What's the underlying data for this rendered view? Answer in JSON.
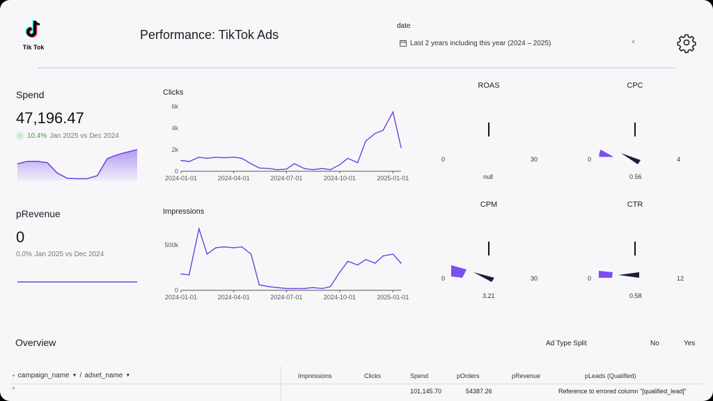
{
  "header": {
    "logo_text": "Tik Tok",
    "title": "Performance: TikTok Ads",
    "date_label": "date",
    "date_value": "Last 2 years including this year (2024 – 2025)",
    "clear_symbol": "×"
  },
  "kpis": {
    "spend": {
      "title": "Spend",
      "value": "47,196.47",
      "delta": "10.4%",
      "period": "Jan 2025 vs Dec 2024"
    },
    "prevenue": {
      "title": "pRevenue",
      "value": "0",
      "delta": "0.0%",
      "period": "Jan 2025 vs Dec 2024"
    }
  },
  "gauges": {
    "roas": {
      "title": "ROAS",
      "min": "0",
      "max": "30",
      "value": "null"
    },
    "cpc": {
      "title": "CPC",
      "min": "0",
      "max": "4",
      "value": "0.56"
    },
    "cpm": {
      "title": "CPM",
      "min": "0",
      "max": "30",
      "value": "3.21"
    },
    "ctr": {
      "title": "CTR",
      "min": "0",
      "max": "12",
      "value": "0.58"
    }
  },
  "overview": {
    "title": "Overview",
    "split_label": "Ad Type Split",
    "split_no": "No",
    "split_yes": "Yes"
  },
  "table": {
    "row_dim1": "campaign_name",
    "row_dim_sep": "/",
    "row_dim2": "adset_name",
    "expand_symbol": "+",
    "columns": [
      "Impressions",
      "Clicks",
      "Spend",
      "pOrders",
      "pRevenue",
      "pLeads (Qualified)"
    ],
    "total_row": {
      "spend": "101,145.70",
      "porders": "54387.26",
      "pleads": "Reference to errored column \"[qualified_lead]\""
    }
  },
  "colors": {
    "accent": "#6c3fe0",
    "needle": "#1d1d3a",
    "gauge_fill": "#7b4ef0"
  },
  "chart_data": [
    {
      "type": "area",
      "title": "Spend",
      "x": [
        "2024-01",
        "2024-02",
        "2024-03",
        "2024-04",
        "2024-05",
        "2024-06",
        "2024-07",
        "2024-08",
        "2024-09",
        "2024-10",
        "2024-11",
        "2024-12",
        "2025-01"
      ],
      "values": [
        2400,
        2800,
        2800,
        2600,
        1000,
        200,
        150,
        150,
        600,
        3200,
        3800,
        4200,
        4600
      ],
      "ylim": [
        0,
        5000
      ]
    },
    {
      "type": "line",
      "title": "pRevenue",
      "x": [
        "2024-01",
        "2024-02",
        "2024-03",
        "2024-04",
        "2024-05",
        "2024-06",
        "2024-07",
        "2024-08",
        "2024-09",
        "2024-10",
        "2024-11",
        "2024-12",
        "2025-01"
      ],
      "values": [
        0,
        0,
        0,
        0,
        0,
        0,
        0,
        0,
        0,
        0,
        0,
        0,
        0
      ]
    },
    {
      "type": "line",
      "title": "Clicks",
      "x_ticks": [
        "2024-01-01",
        "2024-04-01",
        "2024-07-01",
        "2024-10-01",
        "2025-01-01"
      ],
      "y_ticks": [
        "0",
        "2k",
        "4k",
        "6k"
      ],
      "ylim": [
        0,
        6000
      ],
      "x": [
        "2024-01-01",
        "2024-01-15",
        "2024-02-01",
        "2024-02-15",
        "2024-03-01",
        "2024-03-15",
        "2024-04-01",
        "2024-04-15",
        "2024-05-01",
        "2024-05-15",
        "2024-06-01",
        "2024-06-15",
        "2024-07-01",
        "2024-07-15",
        "2024-08-01",
        "2024-08-15",
        "2024-09-01",
        "2024-09-15",
        "2024-10-01",
        "2024-10-15",
        "2024-11-01",
        "2024-11-15",
        "2024-12-01",
        "2024-12-15",
        "2025-01-01",
        "2025-01-15"
      ],
      "values": [
        1000,
        900,
        1300,
        1200,
        1300,
        1250,
        1300,
        1200,
        700,
        300,
        250,
        150,
        200,
        700,
        250,
        150,
        250,
        150,
        600,
        1200,
        800,
        2800,
        3500,
        3800,
        5500,
        2200
      ]
    },
    {
      "type": "line",
      "title": "Impressions",
      "x_ticks": [
        "2024-01-01",
        "2024-04-01",
        "2024-07-01",
        "2024-10-01",
        "2025-01-01"
      ],
      "y_ticks": [
        "0",
        "500k"
      ],
      "ylim": [
        0,
        700000
      ],
      "x": [
        "2024-01-01",
        "2024-01-15",
        "2024-02-01",
        "2024-02-15",
        "2024-03-01",
        "2024-03-15",
        "2024-04-01",
        "2024-04-15",
        "2024-05-01",
        "2024-05-15",
        "2024-06-01",
        "2024-06-15",
        "2024-07-01",
        "2024-07-15",
        "2024-08-01",
        "2024-08-15",
        "2024-09-01",
        "2024-09-15",
        "2024-10-01",
        "2024-10-15",
        "2024-11-01",
        "2024-11-15",
        "2024-12-01",
        "2024-12-15",
        "2025-01-01",
        "2025-01-15"
      ],
      "values": [
        180000,
        170000,
        680000,
        400000,
        470000,
        480000,
        470000,
        480000,
        400000,
        60000,
        40000,
        30000,
        20000,
        20000,
        20000,
        30000,
        20000,
        40000,
        200000,
        320000,
        280000,
        340000,
        300000,
        380000,
        400000,
        300000
      ]
    }
  ]
}
